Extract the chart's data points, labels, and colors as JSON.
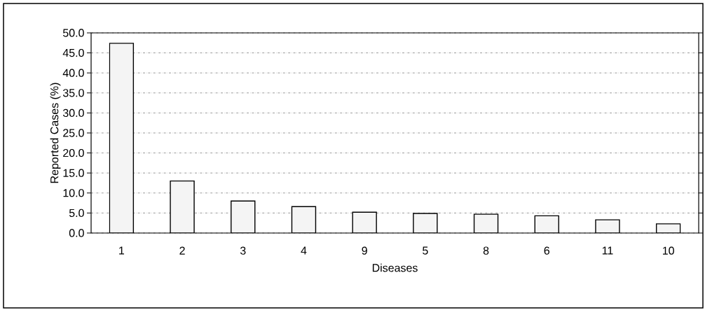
{
  "chart_data": {
    "type": "bar",
    "xlabel": "Diseases",
    "ylabel": "Reported Cases (%)",
    "categories": [
      "1",
      "2",
      "3",
      "4",
      "9",
      "5",
      "8",
      "6",
      "11",
      "10"
    ],
    "values": [
      47.4,
      13.0,
      8.0,
      6.6,
      5.2,
      4.9,
      4.7,
      4.3,
      3.3,
      2.3
    ],
    "color": "#f4f4f4",
    "ylim": [
      0,
      50
    ],
    "yticks": [
      {
        "value": 0,
        "label": "0.0"
      },
      {
        "value": 5,
        "label": "5.0"
      },
      {
        "value": 10,
        "label": "10.0"
      },
      {
        "value": 15,
        "label": "15.0"
      },
      {
        "value": 20,
        "label": "20.0"
      },
      {
        "value": 25,
        "label": "25.0"
      },
      {
        "value": 30,
        "label": "30.0"
      },
      {
        "value": 35,
        "label": "35.0"
      },
      {
        "value": 40,
        "label": "40.0"
      },
      {
        "value": 45,
        "label": "45.0"
      },
      {
        "value": 50,
        "label": "50.0"
      }
    ],
    "grid": "y",
    "line_style": "dashed"
  }
}
